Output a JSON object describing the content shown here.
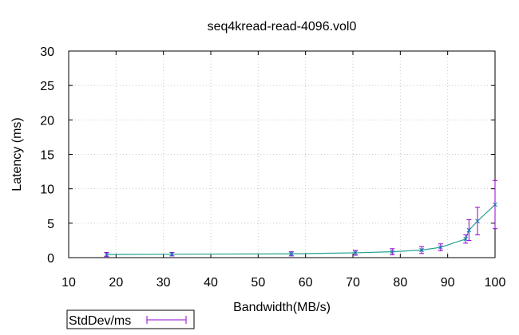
{
  "chart_data": {
    "type": "line",
    "title": "seq4kread-read-4096.vol0",
    "xlabel": "Bandwidth(MB/s)",
    "ylabel": "Latency (ms)",
    "xlim": [
      10,
      100
    ],
    "ylim": [
      0,
      30
    ],
    "x_ticks": [
      "10",
      "20",
      "30",
      "40",
      "50",
      "60",
      "70",
      "80",
      "90",
      "100"
    ],
    "y_ticks": [
      "0",
      "5",
      "10",
      "15",
      "20",
      "25",
      "30"
    ],
    "grid": true,
    "legend_position": "bottom-left",
    "series": [
      {
        "name": "StdDev/ms",
        "line_color": "#20a08f",
        "errorbar_color": "#9400d3",
        "marker_color": "#1f77b4",
        "points": [
          {
            "x": 18.0,
            "y": 0.45,
            "err": 0.3
          },
          {
            "x": 31.8,
            "y": 0.5,
            "err": 0.25
          },
          {
            "x": 57.0,
            "y": 0.55,
            "err": 0.3
          },
          {
            "x": 70.5,
            "y": 0.7,
            "err": 0.35
          },
          {
            "x": 78.3,
            "y": 0.85,
            "err": 0.45
          },
          {
            "x": 84.5,
            "y": 1.1,
            "err": 0.5
          },
          {
            "x": 88.5,
            "y": 1.5,
            "err": 0.5
          },
          {
            "x": 93.8,
            "y": 2.7,
            "err": 0.6
          },
          {
            "x": 94.5,
            "y": 4.0,
            "err": 1.5
          },
          {
            "x": 96.3,
            "y": 5.3,
            "err": 2.0
          },
          {
            "x": 100.0,
            "y": 7.7,
            "err": 3.5
          }
        ]
      }
    ]
  }
}
